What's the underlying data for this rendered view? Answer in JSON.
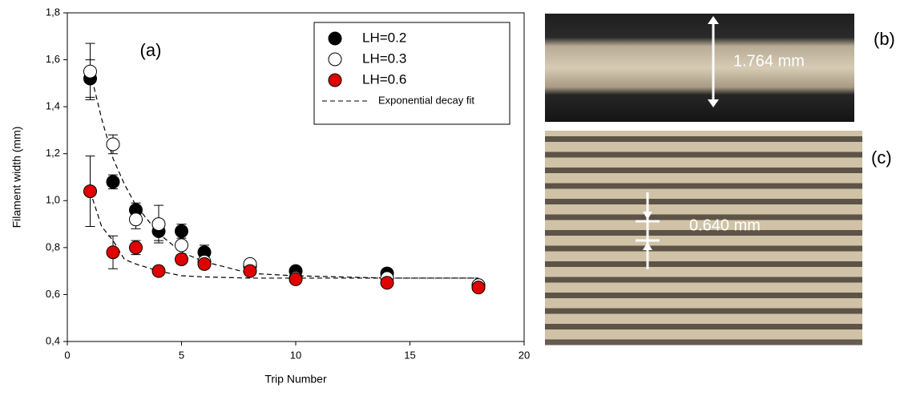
{
  "chart_data": {
    "type": "scatter",
    "panel_label": "(a)",
    "xlabel": "Trip Number",
    "ylabel": "Filament width (mm)",
    "xlim": [
      0,
      20
    ],
    "xticks": [
      0,
      5,
      10,
      15,
      20
    ],
    "ylim": [
      0.4,
      1.8
    ],
    "yticks": [
      {
        "value": 0.4,
        "label": "0,4"
      },
      {
        "value": 0.6,
        "label": "0,6"
      },
      {
        "value": 0.8,
        "label": "0,8"
      },
      {
        "value": 1.0,
        "label": "1,0"
      },
      {
        "value": 1.2,
        "label": "1,2"
      },
      {
        "value": 1.4,
        "label": "1,4"
      },
      {
        "value": 1.6,
        "label": "1,6"
      },
      {
        "value": 1.8,
        "label": "1,8"
      }
    ],
    "legend": "upper right",
    "x": [
      1,
      2,
      3,
      4,
      5,
      6,
      8,
      10,
      14,
      18
    ],
    "series": [
      {
        "name": "LH=0.2",
        "color": "#000000",
        "values": [
          1.52,
          1.08,
          0.96,
          0.87,
          0.87,
          0.78,
          0.72,
          0.7,
          0.69,
          0.64
        ],
        "errors": [
          0.08,
          0.03,
          0.03,
          0.04,
          0.03,
          0.03,
          0.01,
          0.01,
          0.02,
          0.01
        ]
      },
      {
        "name": "LH=0.3",
        "color": "#ffffff",
        "values": [
          1.55,
          1.24,
          0.92,
          0.9,
          0.81,
          0.74,
          0.73,
          0.67,
          0.67,
          0.64
        ],
        "errors": [
          0.12,
          0.04,
          0.04,
          0.08,
          0.02,
          0.02,
          0.01,
          0.01,
          0.01,
          0.01
        ]
      },
      {
        "name": "LH=0.6",
        "color": "#e00000",
        "values": [
          1.04,
          0.78,
          0.8,
          0.7,
          0.75,
          0.73,
          0.7,
          0.665,
          0.65,
          0.63
        ],
        "errors": [
          0.15,
          0.07,
          0.03,
          0.01,
          0.02,
          0.02,
          0.01,
          0.01,
          0.01,
          0.01
        ]
      }
    ],
    "fit": {
      "name": "Exponential decay fit",
      "color": "#000000",
      "x": [
        1,
        1.5,
        2,
        2.5,
        3,
        4,
        5,
        6,
        8,
        10,
        14,
        18
      ],
      "curves": [
        [
          1.55,
          1.35,
          1.18,
          1.07,
          0.98,
          0.86,
          0.78,
          0.74,
          0.69,
          0.68,
          0.67,
          0.67
        ],
        [
          1.04,
          0.89,
          0.83,
          0.75,
          0.73,
          0.7,
          0.68,
          0.675,
          0.67,
          0.67,
          0.67,
          0.67
        ]
      ]
    }
  },
  "panels": {
    "b": {
      "label": "(b)",
      "measure": "1.764 mm"
    },
    "c": {
      "label": "(c)",
      "measure": "0.640 mm"
    }
  }
}
